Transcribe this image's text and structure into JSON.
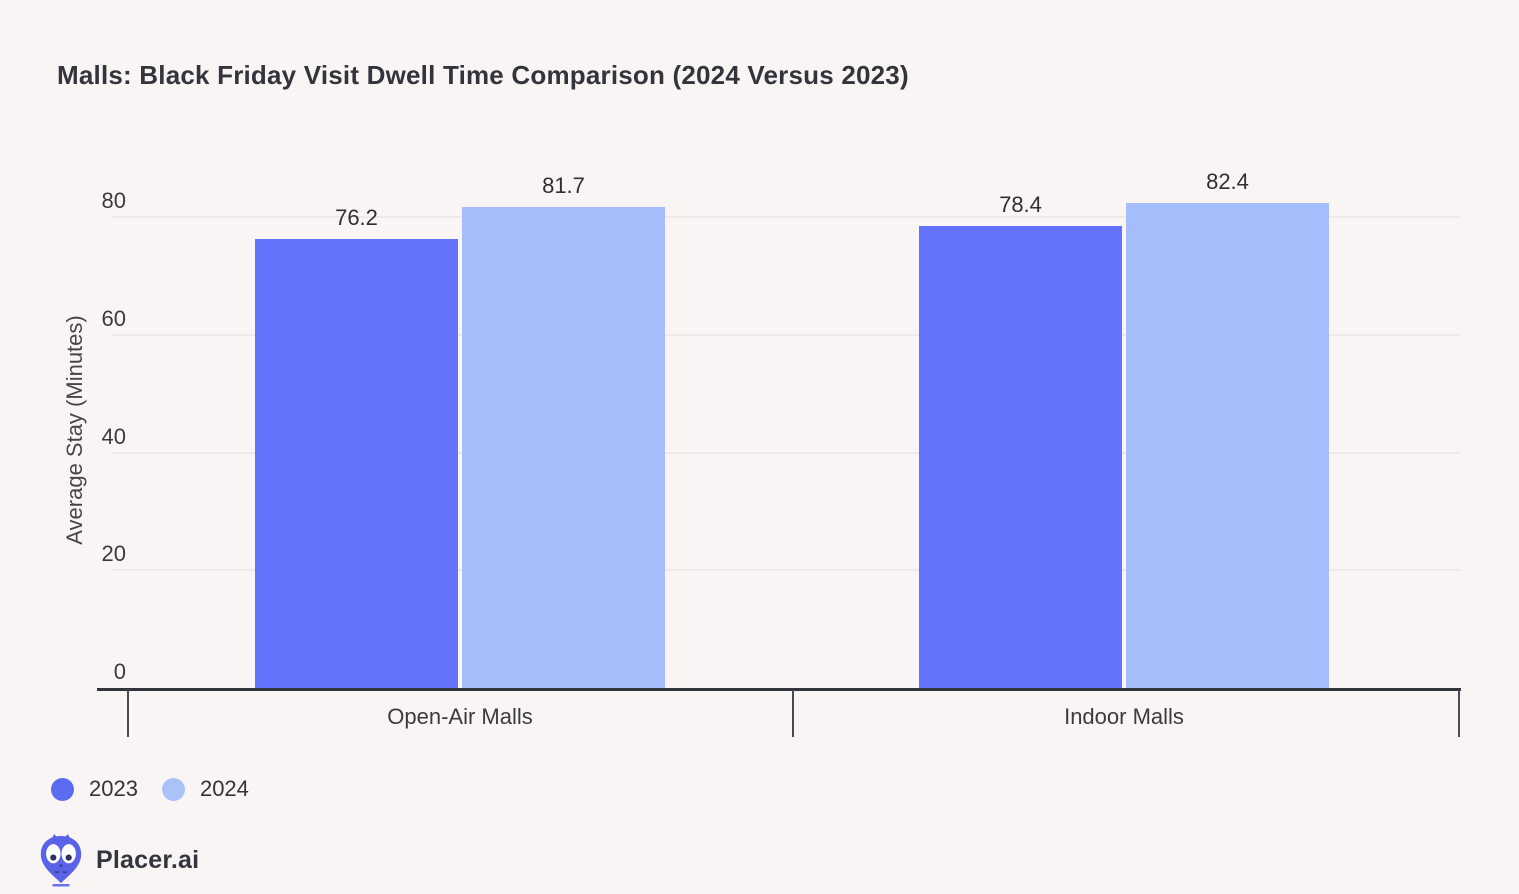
{
  "page": {
    "background": "#faf5f5",
    "title": "Malls: Black Friday Visit Dwell Time Comparison (2024 Versus 2023)"
  },
  "chart_data": {
    "type": "bar",
    "title": "Malls: Black Friday Visit Dwell Time Comparison (2024 Versus 2023)",
    "categories": [
      "Open-Air Malls",
      "Indoor Malls"
    ],
    "series": [
      {
        "name": "2023",
        "color": "#6373fb",
        "values": [
          76.2,
          78.4
        ]
      },
      {
        "name": "2024",
        "color": "#a5bdfb",
        "values": [
          81.7,
          82.4
        ]
      }
    ],
    "value_labels": [
      [
        "76.2",
        "78.4"
      ],
      [
        "81.7",
        "82.4"
      ]
    ],
    "xlabel": "",
    "ylabel": "Average Stay (Minutes)",
    "yticks": [
      0,
      20,
      40,
      60,
      80
    ],
    "ylim": [
      0,
      85
    ],
    "grid": true,
    "legend_position": "bottom-left"
  },
  "legend": {
    "items": [
      {
        "label": "2023",
        "color": "#5b6cf3"
      },
      {
        "label": "2024",
        "color": "#a9c3f7"
      }
    ]
  },
  "branding": {
    "logo_text": "Placer.ai",
    "logo_icon": "placer-owl-pin-icon",
    "logo_color": "#5a62e8"
  },
  "colors": {
    "axis": "#34343c",
    "gridline": "#eee8e9",
    "tick_text": "#3b3b3b",
    "title_text": "#33343c"
  }
}
